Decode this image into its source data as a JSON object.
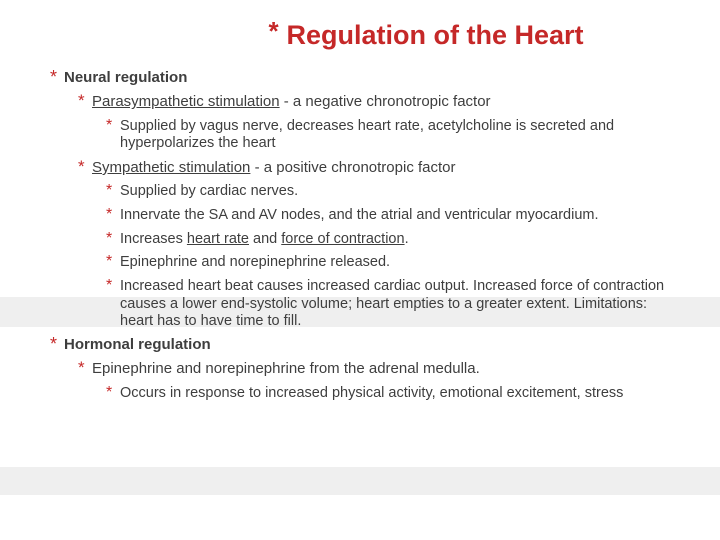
{
  "title": "Regulation of the Heart",
  "colors": {
    "accent": "#c52828",
    "text": "#3e3e3e",
    "band": "#efefef",
    "background": "#ffffff"
  },
  "items": {
    "a": "Neural regulation",
    "b_pre": "Parasympathetic stimulation",
    "b_post": " - a negative chronotropic factor",
    "c": "Supplied by vagus nerve, decreases heart rate, acetylcholine is secreted and hyperpolarizes the heart",
    "d_pre": "Sympathetic stimulation",
    "d_post": " - a positive chronotropic factor",
    "e": "Supplied by cardiac nerves.",
    "f": "Innervate the SA and AV nodes, and the atrial and ventricular myocardium.",
    "g_pre": "Increases ",
    "g_u1": "heart rate",
    "g_mid": " and ",
    "g_u2": "force of contraction",
    "g_post": ".",
    "h": "Epinephrine and norepinephrine released.",
    "i": "Increased heart beat causes increased cardiac output. Increased force of contraction causes a lower end-systolic volume; heart empties to a greater extent. Limitations: heart has to have time to fill.",
    "j": "Hormonal regulation",
    "k": " Epinephrine and norepinephrine from the adrenal medulla.",
    "l": "Occurs in response to  increased physical activity, emotional excitement, stress"
  }
}
